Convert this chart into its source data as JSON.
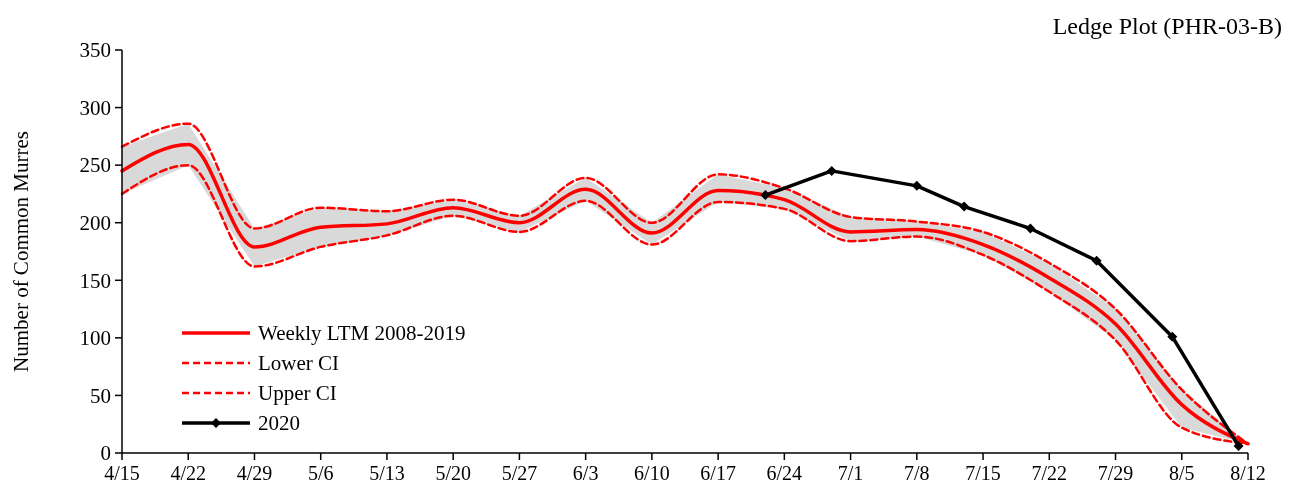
{
  "chart_data": {
    "type": "line",
    "title": "Ledge Plot (PHR-03-B)",
    "ylabel": "Number of Common Murres",
    "x": [
      "--04-15",
      "--04-22",
      "--04-29",
      "--05-06",
      "--05-13",
      "--05-20",
      "--05-27",
      "--06-03",
      "--06-10",
      "--06-17",
      "--06-24",
      "--07-01",
      "--07-08",
      "--07-15",
      "--07-22",
      "--07-29",
      "--08-05",
      "--08-12"
    ],
    "series": [
      {
        "name": "Weekly LTM 2008-2019",
        "color": "#ff0000",
        "line_style": "solid",
        "marker": "none",
        "values": [
          245,
          268,
          179,
          196,
          199,
          213,
          200,
          229,
          191,
          228,
          220,
          192,
          194,
          181,
          152,
          112,
          42,
          8
        ],
        "lower": [
          225,
          250,
          162,
          179,
          189,
          206,
          192,
          219,
          181,
          218,
          212,
          184,
          188,
          172,
          140,
          98,
          22,
          8
        ],
        "upper": [
          266,
          286,
          195,
          213,
          210,
          220,
          206,
          239,
          200,
          242,
          230,
          205,
          201,
          192,
          165,
          125,
          55,
          8
        ]
      },
      {
        "name": "Lower CI",
        "color": "#ff0000",
        "line_style": "dashed",
        "marker": "none",
        "values": [
          225,
          250,
          162,
          179,
          189,
          206,
          192,
          219,
          181,
          218,
          212,
          184,
          188,
          172,
          140,
          98,
          22,
          8
        ]
      },
      {
        "name": "Upper CI",
        "color": "#ff0000",
        "line_style": "dashed",
        "marker": "none",
        "values": [
          266,
          286,
          195,
          213,
          210,
          220,
          206,
          239,
          200,
          242,
          230,
          205,
          201,
          192,
          165,
          125,
          55,
          8
        ]
      },
      {
        "name": "2020",
        "color": "#000000",
        "line_style": "solid",
        "marker": "diamond",
        "x": [
          "--06-22",
          "--06-29",
          "--07-08",
          "--07-13",
          "--07-20",
          "--07-27",
          "--08-04",
          "--08-11"
        ],
        "values": [
          224,
          245,
          232,
          214,
          195,
          167,
          101,
          6
        ]
      }
    ],
    "xlim": [
      "--04-15",
      "--08-12"
    ],
    "xticks": [
      {
        "value": "--04-15",
        "label": "4/15"
      },
      {
        "value": "--04-22",
        "label": "4/22"
      },
      {
        "value": "--04-29",
        "label": "4/29"
      },
      {
        "value": "--05-06",
        "label": "5/6"
      },
      {
        "value": "--05-13",
        "label": "5/13"
      },
      {
        "value": "--05-20",
        "label": "5/20"
      },
      {
        "value": "--05-27",
        "label": "5/27"
      },
      {
        "value": "--06-03",
        "label": "6/3"
      },
      {
        "value": "--06-10",
        "label": "6/10"
      },
      {
        "value": "--06-17",
        "label": "6/17"
      },
      {
        "value": "--06-24",
        "label": "6/24"
      },
      {
        "value": "--07-01",
        "label": "7/1"
      },
      {
        "value": "--07-08",
        "label": "7/8"
      },
      {
        "value": "--07-15",
        "label": "7/15"
      },
      {
        "value": "--07-22",
        "label": "7/22"
      },
      {
        "value": "--07-29",
        "label": "7/29"
      },
      {
        "value": "--08-05",
        "label": "8/5"
      },
      {
        "value": "--08-12",
        "label": "8/12"
      }
    ],
    "ylim": [
      0,
      350
    ],
    "yticks": [
      0,
      50,
      100,
      150,
      200,
      250,
      300,
      350
    ],
    "grid": false,
    "legend": "bottom left"
  }
}
